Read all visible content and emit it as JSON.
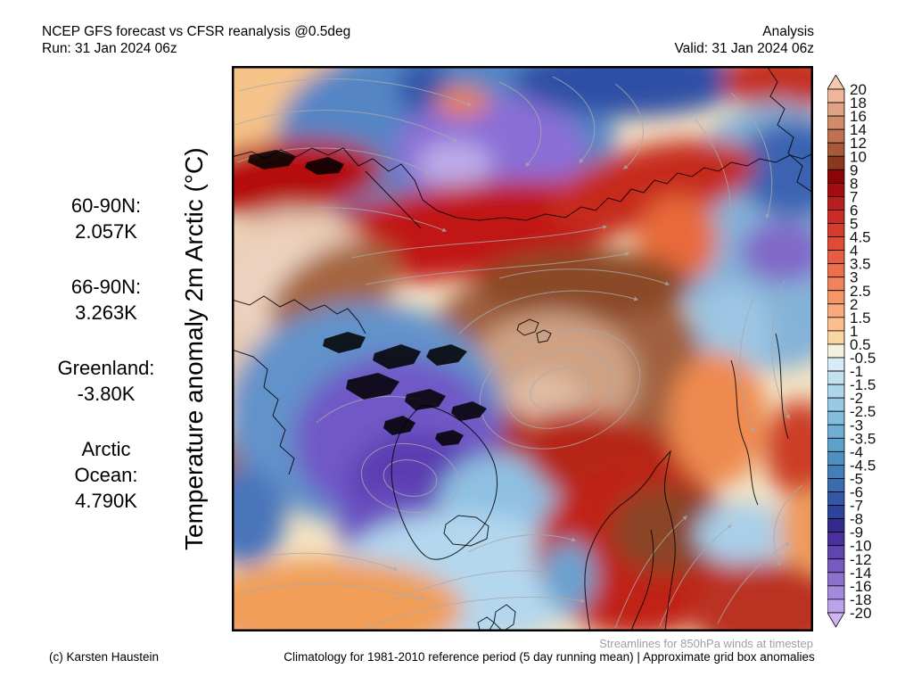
{
  "header": {
    "title": "NCEP GFS forecast vs CFSR reanalysis @0.5deg",
    "run_line": "Run: 31 Jan 2024 06z",
    "mode": "Analysis",
    "valid_line": "Valid: 31 Jan 2024 06z"
  },
  "stats": {
    "items": [
      {
        "lines": [
          "60-90N:",
          "2.057K"
        ]
      },
      {
        "lines": [
          "66-90N:",
          "3.263K"
        ]
      },
      {
        "lines": [
          "Greenland:",
          "-3.80K"
        ]
      },
      {
        "lines": [
          "Arctic",
          "Ocean:",
          "4.790K"
        ]
      }
    ]
  },
  "y_axis_label": "Temperature anomaly 2m Arctic (°C)",
  "colorbar": {
    "tick_labels": [
      "20",
      "18",
      "16",
      "14",
      "12",
      "10",
      "9",
      "8",
      "7",
      "6",
      "5",
      "4.5",
      "4",
      "3.5",
      "3",
      "2.5",
      "2",
      "1.5",
      "1",
      "0.5",
      "-0.5",
      "-1",
      "-1.5",
      "-2",
      "-2.5",
      "-3",
      "-3.5",
      "-4",
      "-4.5",
      "-5",
      "-6",
      "-7",
      "-8",
      "-9",
      "-10",
      "-12",
      "-14",
      "-16",
      "-18",
      "-20"
    ],
    "cell_colors": [
      "#efb69c",
      "#e0a184",
      "#d18a6a",
      "#bf7252",
      "#a9583a",
      "#8a3a1c",
      "#8c0408",
      "#a30d12",
      "#b81e1e",
      "#c92c25",
      "#d63b2c",
      "#de4c36",
      "#e65d43",
      "#ec704e",
      "#f1825b",
      "#f59669",
      "#f8aa7a",
      "#fabf8c",
      "#f9d5a1",
      "#f5f1e0",
      "#d8ebf6",
      "#c3e1f1",
      "#aed6eb",
      "#99cae4",
      "#84bddd",
      "#70afd4",
      "#5da0ca",
      "#4e90c1",
      "#427fb8",
      "#3a6cb0",
      "#3458a6",
      "#2e449b",
      "#342a8c",
      "#4a2f9e",
      "#6145af",
      "#775abf",
      "#8d71cd",
      "#a48adc",
      "#bba2ea"
    ],
    "arrow_top_color": "#f6c9ae",
    "arrow_bottom_color": "#ccb5f2"
  },
  "footer": {
    "streamline_note": "Streamlines for 850hPa winds at timestep",
    "copyright": "(c) Karsten Haustein",
    "climatology_note": "Climatology for 1981-2010 reference period (5 day running mean) | Approximate grid box anomalies"
  }
}
